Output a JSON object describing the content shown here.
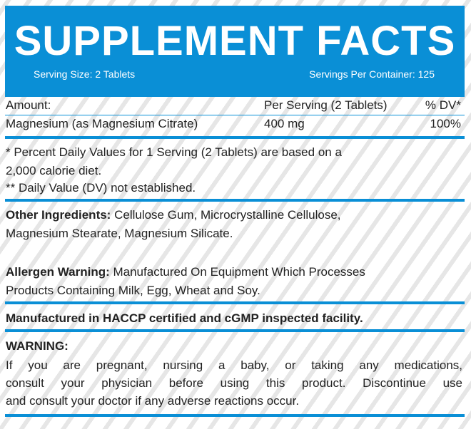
{
  "header": {
    "title": "SUPPLEMENT FACTS",
    "serving_size": "Serving Size: 2 Tablets",
    "servings_per_container": "Servings Per Container: 125"
  },
  "table": {
    "headers": [
      "Amount:",
      "Per Serving (2 Tablets)",
      "% DV*"
    ],
    "rows": [
      [
        "Magnesium (as Magnesium Citrate)",
        "400 mg",
        "100%"
      ]
    ]
  },
  "footnotes": [
    "* Percent Daily Values for 1 Serving (2 Tablets) are based on a",
    "2,000 calorie diet.",
    "** Daily Value (DV) not established."
  ],
  "other_ingredients": {
    "label": "Other Ingredients:",
    "line1": " Cellulose Gum, Microcrystalline Cellulose,",
    "line2": "Magnesium Stearate, Magnesium Silicate."
  },
  "allergen": {
    "label": "Allergen Warning:",
    "line1": " Manufactured On Equipment Which Processes",
    "line2": "Products Containing Milk, Egg, Wheat and Soy."
  },
  "facility": "Manufactured in HACCP certified and cGMP inspected facility.",
  "warning": {
    "label": "WARNING:",
    "lines": [
      "If you are pregnant, nursing a baby, or taking any medications,",
      "consult your physician before using this product. Discontinue use",
      "and consult your doctor if any adverse reactions occur."
    ]
  },
  "colors": {
    "accent": "#0a8fd6"
  }
}
